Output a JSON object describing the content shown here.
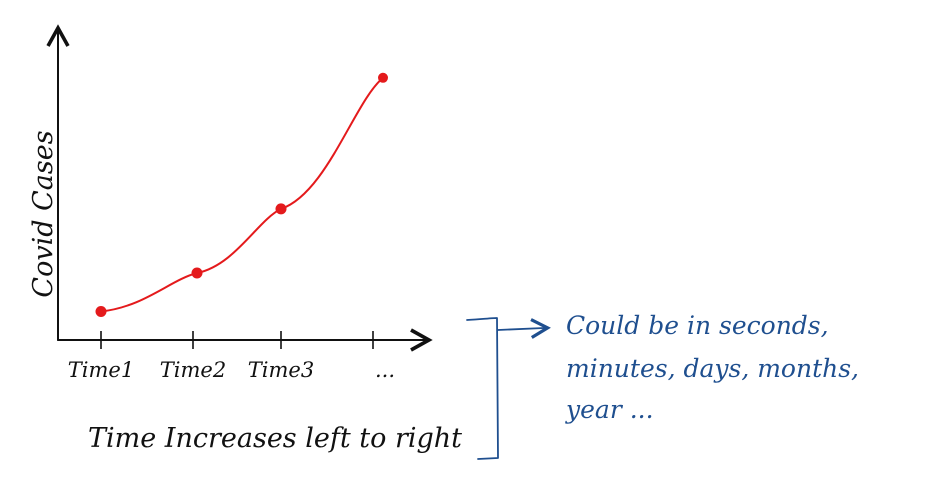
{
  "chart_data": {
    "type": "line",
    "title": "",
    "xlabel": "Time Increases left to right",
    "ylabel": "Covid Cases",
    "categories": [
      "Time1",
      "Time2",
      "Time3",
      "..."
    ],
    "x": [
      "Time1",
      "Time2",
      "Time3",
      "..."
    ],
    "values": [
      1,
      2.35,
      4.6,
      9.2
    ],
    "ylim": [
      0,
      10
    ],
    "grid": false,
    "legend": "none"
  },
  "annotation": {
    "lines": [
      "Could be in seconds,",
      "minutes, days, months,",
      "year ..."
    ]
  },
  "colors": {
    "series": "#e41a1c",
    "axis": "#111111",
    "annotation": "#1f4f8f"
  }
}
